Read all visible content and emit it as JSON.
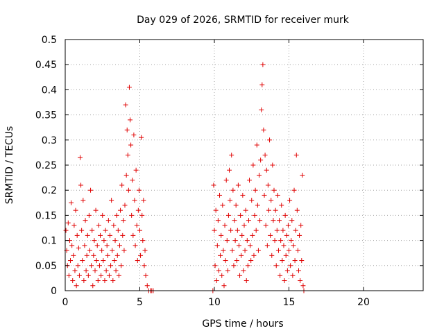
{
  "chart_data": {
    "type": "scatter",
    "title": "Day 029 of 2026, SRMTID for receiver murk",
    "xlabel": "GPS time / hours",
    "ylabel": "SRMTID / TECUs",
    "xlim": [
      0,
      24
    ],
    "ylim": [
      0,
      0.5
    ],
    "xticks": [
      0,
      5,
      10,
      15,
      20
    ],
    "xtick_labels": [
      "0",
      "5",
      "10",
      "15",
      "20"
    ],
    "yticks": [
      0,
      0.05,
      0.1,
      0.15,
      0.2,
      0.25,
      0.3,
      0.35,
      0.4,
      0.45,
      0.5
    ],
    "ytick_labels": [
      "0",
      "0.05",
      "0.1",
      "0.15",
      "0.2",
      "0.25",
      "0.3",
      "0.35",
      "0.4",
      "0.45",
      "0.5"
    ],
    "grid": true,
    "marker": "+",
    "color": "#e00000",
    "series": [
      {
        "name": "SRMTID",
        "points": [
          [
            0.05,
            0.12
          ],
          [
            0.1,
            0.08
          ],
          [
            0.15,
            0.05
          ],
          [
            0.2,
            0.135
          ],
          [
            0.25,
            0.03
          ],
          [
            0.3,
            0.1
          ],
          [
            0.35,
            0.06
          ],
          [
            0.4,
            0.175
          ],
          [
            0.45,
            0.09
          ],
          [
            0.5,
            0.02
          ],
          [
            0.55,
            0.07
          ],
          [
            0.6,
            0.13
          ],
          [
            0.65,
            0.04
          ],
          [
            0.7,
            0.16
          ],
          [
            0.75,
            0.01
          ],
          [
            0.8,
            0.11
          ],
          [
            0.85,
            0.05
          ],
          [
            0.9,
            0.085
          ],
          [
            0.95,
            0.03
          ],
          [
            1.0,
            0.265
          ],
          [
            1.05,
            0.21
          ],
          [
            1.1,
            0.12
          ],
          [
            1.15,
            0.06
          ],
          [
            1.2,
            0.18
          ],
          [
            1.25,
            0.02
          ],
          [
            1.3,
            0.09
          ],
          [
            1.35,
            0.14
          ],
          [
            1.4,
            0.04
          ],
          [
            1.45,
            0.07
          ],
          [
            1.5,
            0.11
          ],
          [
            1.55,
            0.03
          ],
          [
            1.6,
            0.15
          ],
          [
            1.65,
            0.08
          ],
          [
            1.7,
            0.2
          ],
          [
            1.75,
            0.05
          ],
          [
            1.8,
            0.12
          ],
          [
            1.85,
            0.01
          ],
          [
            1.9,
            0.07
          ],
          [
            1.95,
            0.1
          ],
          [
            2.0,
            0.04
          ],
          [
            2.05,
            0.16
          ],
          [
            2.1,
            0.06
          ],
          [
            2.15,
            0.09
          ],
          [
            2.2,
            0.02
          ],
          [
            2.25,
            0.13
          ],
          [
            2.3,
            0.05
          ],
          [
            2.35,
            0.11
          ],
          [
            2.4,
            0.03
          ],
          [
            2.45,
            0.08
          ],
          [
            2.5,
            0.15
          ],
          [
            2.55,
            0.06
          ],
          [
            2.6,
            0.1
          ],
          [
            2.65,
            0.02
          ],
          [
            2.7,
            0.12
          ],
          [
            2.75,
            0.04
          ],
          [
            2.8,
            0.09
          ],
          [
            2.85,
            0.07
          ],
          [
            2.9,
            0.14
          ],
          [
            2.95,
            0.03
          ],
          [
            3.0,
            0.11
          ],
          [
            3.05,
            0.05
          ],
          [
            3.1,
            0.18
          ],
          [
            3.15,
            0.08
          ],
          [
            3.2,
            0.02
          ],
          [
            3.25,
            0.13
          ],
          [
            3.3,
            0.06
          ],
          [
            3.35,
            0.1
          ],
          [
            3.4,
            0.04
          ],
          [
            3.45,
            0.15
          ],
          [
            3.5,
            0.07
          ],
          [
            3.55,
            0.12
          ],
          [
            3.6,
            0.03
          ],
          [
            3.65,
            0.09
          ],
          [
            3.7,
            0.16
          ],
          [
            3.75,
            0.05
          ],
          [
            3.8,
            0.21
          ],
          [
            3.85,
            0.11
          ],
          [
            3.9,
            0.14
          ],
          [
            3.95,
            0.08
          ],
          [
            4.0,
            0.17
          ],
          [
            4.05,
            0.37
          ],
          [
            4.1,
            0.23
          ],
          [
            4.15,
            0.32
          ],
          [
            4.2,
            0.27
          ],
          [
            4.25,
            0.2
          ],
          [
            4.3,
            0.405
          ],
          [
            4.35,
            0.34
          ],
          [
            4.4,
            0.29
          ],
          [
            4.45,
            0.15
          ],
          [
            4.5,
            0.22
          ],
          [
            4.55,
            0.11
          ],
          [
            4.6,
            0.31
          ],
          [
            4.65,
            0.18
          ],
          [
            4.7,
            0.09
          ],
          [
            4.75,
            0.24
          ],
          [
            4.8,
            0.13
          ],
          [
            4.85,
            0.06
          ],
          [
            4.9,
            0.16
          ],
          [
            4.95,
            0.2
          ],
          [
            5.0,
            0.12
          ],
          [
            5.05,
            0.07
          ],
          [
            5.1,
            0.305
          ],
          [
            5.15,
            0.15
          ],
          [
            5.2,
            0.1
          ],
          [
            5.25,
            0.18
          ],
          [
            5.3,
            0.05
          ],
          [
            5.35,
            0.08
          ],
          [
            5.4,
            0.03
          ],
          [
            5.5,
            0.01
          ],
          [
            5.6,
            0.0
          ],
          [
            5.7,
            0.0
          ],
          [
            5.8,
            0.0
          ],
          [
            5.9,
            0.0
          ],
          [
            9.9,
            0.0
          ],
          [
            9.95,
            0.21
          ],
          [
            10.0,
            0.12
          ],
          [
            10.05,
            0.05
          ],
          [
            10.1,
            0.16
          ],
          [
            10.15,
            0.02
          ],
          [
            10.2,
            0.09
          ],
          [
            10.25,
            0.14
          ],
          [
            10.3,
            0.04
          ],
          [
            10.35,
            0.19
          ],
          [
            10.4,
            0.07
          ],
          [
            10.45,
            0.11
          ],
          [
            10.5,
            0.03
          ],
          [
            10.55,
            0.17
          ],
          [
            10.6,
            0.08
          ],
          [
            10.65,
            0.01
          ],
          [
            10.7,
            0.13
          ],
          [
            10.75,
            0.06
          ],
          [
            10.8,
            0.22
          ],
          [
            10.85,
            0.1
          ],
          [
            10.9,
            0.04
          ],
          [
            10.95,
            0.15
          ],
          [
            11.0,
            0.24
          ],
          [
            11.05,
            0.18
          ],
          [
            11.1,
            0.12
          ],
          [
            11.15,
            0.27
          ],
          [
            11.2,
            0.08
          ],
          [
            11.25,
            0.2
          ],
          [
            11.3,
            0.05
          ],
          [
            11.35,
            0.14
          ],
          [
            11.4,
            0.1
          ],
          [
            11.45,
            0.17
          ],
          [
            11.5,
            0.06
          ],
          [
            11.55,
            0.12
          ],
          [
            11.6,
            0.21
          ],
          [
            11.65,
            0.09
          ],
          [
            11.7,
            0.03
          ],
          [
            11.75,
            0.15
          ],
          [
            11.8,
            0.07
          ],
          [
            11.85,
            0.11
          ],
          [
            11.9,
            0.19
          ],
          [
            11.95,
            0.04
          ],
          [
            12.0,
            0.13
          ],
          [
            12.05,
            0.08
          ],
          [
            12.1,
            0.16
          ],
          [
            12.15,
            0.02
          ],
          [
            12.2,
            0.1
          ],
          [
            12.25,
            0.05
          ],
          [
            12.3,
            0.14
          ],
          [
            12.35,
            0.22
          ],
          [
            12.4,
            0.09
          ],
          [
            12.45,
            0.06
          ],
          [
            12.5,
            0.18
          ],
          [
            12.55,
            0.11
          ],
          [
            12.6,
            0.25
          ],
          [
            12.65,
            0.07
          ],
          [
            12.7,
            0.15
          ],
          [
            12.75,
            0.2
          ],
          [
            12.8,
            0.12
          ],
          [
            12.85,
            0.29
          ],
          [
            12.9,
            0.17
          ],
          [
            12.95,
            0.08
          ],
          [
            13.0,
            0.23
          ],
          [
            13.05,
            0.14
          ],
          [
            13.1,
            0.26
          ],
          [
            13.15,
            0.36
          ],
          [
            13.2,
            0.41
          ],
          [
            13.25,
            0.45
          ],
          [
            13.3,
            0.32
          ],
          [
            13.35,
            0.19
          ],
          [
            13.4,
            0.27
          ],
          [
            13.45,
            0.13
          ],
          [
            13.5,
            0.24
          ],
          [
            13.55,
            0.09
          ],
          [
            13.6,
            0.21
          ],
          [
            13.65,
            0.16
          ],
          [
            13.7,
            0.3
          ],
          [
            13.75,
            0.11
          ],
          [
            13.8,
            0.18
          ],
          [
            13.85,
            0.07
          ],
          [
            13.9,
            0.25
          ],
          [
            13.95,
            0.14
          ],
          [
            14.0,
            0.2
          ],
          [
            14.05,
            0.1
          ],
          [
            14.1,
            0.16
          ],
          [
            14.15,
            0.05
          ],
          [
            14.2,
            0.12
          ],
          [
            14.25,
            0.19
          ],
          [
            14.3,
            0.08
          ],
          [
            14.35,
            0.14
          ],
          [
            14.4,
            0.03
          ],
          [
            14.45,
            0.1
          ],
          [
            14.5,
            0.17
          ],
          [
            14.55,
            0.06
          ],
          [
            14.6,
            0.12
          ],
          [
            14.65,
            0.09
          ],
          [
            14.7,
            0.02
          ],
          [
            14.75,
            0.15
          ],
          [
            14.8,
            0.07
          ],
          [
            14.85,
            0.11
          ],
          [
            14.9,
            0.04
          ],
          [
            14.95,
            0.13
          ],
          [
            15.0,
            0.08
          ],
          [
            15.05,
            0.18
          ],
          [
            15.1,
            0.05
          ],
          [
            15.15,
            0.1
          ],
          [
            15.2,
            0.14
          ],
          [
            15.25,
            0.03
          ],
          [
            15.3,
            0.09
          ],
          [
            15.35,
            0.2
          ],
          [
            15.4,
            0.06
          ],
          [
            15.45,
            0.12
          ],
          [
            15.5,
            0.27
          ],
          [
            15.55,
            0.16
          ],
          [
            15.6,
            0.08
          ],
          [
            15.65,
            0.04
          ],
          [
            15.7,
            0.11
          ],
          [
            15.75,
            0.02
          ],
          [
            15.8,
            0.13
          ],
          [
            15.85,
            0.06
          ],
          [
            15.9,
            0.23
          ],
          [
            15.95,
            0.01
          ],
          [
            16.0,
            0.0
          ]
        ]
      }
    ]
  }
}
